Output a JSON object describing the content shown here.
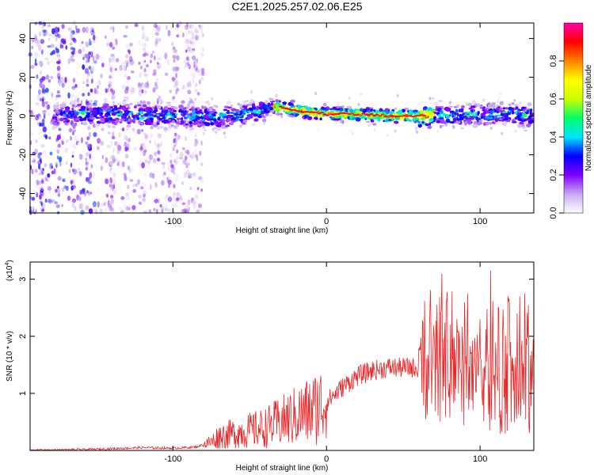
{
  "title": "C2E1.2025.257.02.06.E25",
  "chart_data": [
    {
      "type": "heatmap",
      "xlabel": "Height of straight line (km)",
      "ylabel": "Frequency (Hz)",
      "xlim": [
        -193,
        135
      ],
      "ylim": [
        -50,
        48
      ],
      "xticks": [
        "-100",
        "0",
        "100"
      ],
      "yticks": [
        "40",
        "20",
        "0",
        "-20",
        "-40"
      ],
      "colorbar": {
        "label": "Normalized spectral amplitude",
        "range": [
          0,
          1
        ],
        "ticks": [
          "0.0",
          "0.2",
          "0.4",
          "0.6",
          "0.8"
        ],
        "colors": [
          "#ffffff",
          "#c8a8f0",
          "#8000ff",
          "#0000ff",
          "#00e5ff",
          "#00ff66",
          "#ccff00",
          "#ffff00",
          "#ff8000",
          "#ff0000",
          "#ff00aa"
        ]
      },
      "ridge": [
        {
          "x": -175,
          "y": 1
        },
        {
          "x": -140,
          "y": 1
        },
        {
          "x": -100,
          "y": 0
        },
        {
          "x": -70,
          "y": -1
        },
        {
          "x": -45,
          "y": 2
        },
        {
          "x": -35,
          "y": 5
        },
        {
          "x": -20,
          "y": 3
        },
        {
          "x": 0,
          "y": 1
        },
        {
          "x": 20,
          "y": 1
        },
        {
          "x": 40,
          "y": 0
        },
        {
          "x": 60,
          "y": 0
        },
        {
          "x": 80,
          "y": 0
        },
        {
          "x": 100,
          "y": 1
        },
        {
          "x": 120,
          "y": 1
        },
        {
          "x": 135,
          "y": 0
        }
      ]
    },
    {
      "type": "line",
      "xlabel": "Height of straight line (km)",
      "ylabel": "SNR (10 * v/v)",
      "scale_label": "(x10",
      "scale_exp": "4",
      "scale_close": ")",
      "xlim": [
        -193,
        135
      ],
      "ylim": [
        0,
        3.3
      ],
      "xticks": [
        "-100",
        "0",
        "100"
      ],
      "yticks": [
        "1",
        "2",
        "3"
      ],
      "color": "#e8282a",
      "series": [
        {
          "x": [
            -193,
            -150,
            -120,
            -100,
            -85,
            -75,
            -70,
            -60,
            -50,
            -40,
            -30,
            -20,
            -10,
            0,
            10,
            20,
            30,
            40,
            50,
            60,
            70,
            80,
            90,
            100,
            110,
            120,
            130,
            135
          ],
          "y": [
            0.0,
            0.02,
            0.05,
            0.04,
            0.06,
            0.15,
            0.25,
            0.3,
            0.35,
            0.4,
            0.5,
            0.6,
            0.7,
            0.85,
            1.1,
            1.3,
            1.4,
            1.45,
            1.45,
            1.45,
            1.4,
            1.35,
            1.3,
            1.25,
            1.2,
            1.15,
            1.1,
            1.1
          ],
          "peaks": [
            {
              "x": 75,
              "y": 3.1
            },
            {
              "x": 78,
              "y": 2.6
            },
            {
              "x": 85,
              "y": 2.3
            },
            {
              "x": 92,
              "y": 2.75
            },
            {
              "x": 100,
              "y": 2.3
            },
            {
              "x": 107,
              "y": 3.15
            },
            {
              "x": 112,
              "y": 2.5
            },
            {
              "x": 118,
              "y": 2.7
            },
            {
              "x": 124,
              "y": 2.4
            },
            {
              "x": 129,
              "y": 2.75
            }
          ]
        }
      ]
    }
  ]
}
